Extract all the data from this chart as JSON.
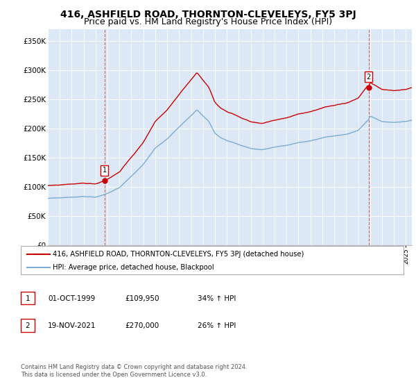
{
  "title": "416, ASHFIELD ROAD, THORNTON-CLEVELEYS, FY5 3PJ",
  "subtitle": "Price paid vs. HM Land Registry's House Price Index (HPI)",
  "ylim": [
    0,
    370000
  ],
  "yticks": [
    0,
    50000,
    100000,
    150000,
    200000,
    250000,
    300000,
    350000
  ],
  "ytick_labels": [
    "£0",
    "£50K",
    "£100K",
    "£150K",
    "£200K",
    "£250K",
    "£300K",
    "£350K"
  ],
  "xlim_start": 1995,
  "xlim_end": 2025.5,
  "sales": [
    {
      "date_num": 1999.75,
      "price": 109950,
      "label": "1"
    },
    {
      "date_num": 2021.88,
      "price": 270000,
      "label": "2"
    }
  ],
  "legend_line1": "416, ASHFIELD ROAD, THORNTON-CLEVELEYS, FY5 3PJ (detached house)",
  "legend_line2": "HPI: Average price, detached house, Blackpool",
  "table_rows": [
    {
      "num": "1",
      "date": "01-OCT-1999",
      "price": "£109,950",
      "change": "34% ↑ HPI"
    },
    {
      "num": "2",
      "date": "19-NOV-2021",
      "price": "£270,000",
      "change": "26% ↑ HPI"
    }
  ],
  "footer": "Contains HM Land Registry data © Crown copyright and database right 2024.\nThis data is licensed under the Open Government Licence v3.0.",
  "red_color": "#cc0000",
  "blue_color": "#7aadd4",
  "bg_color": "#dce8f5",
  "grid_color": "#ffffff",
  "title_fontsize": 10,
  "subtitle_fontsize": 9
}
